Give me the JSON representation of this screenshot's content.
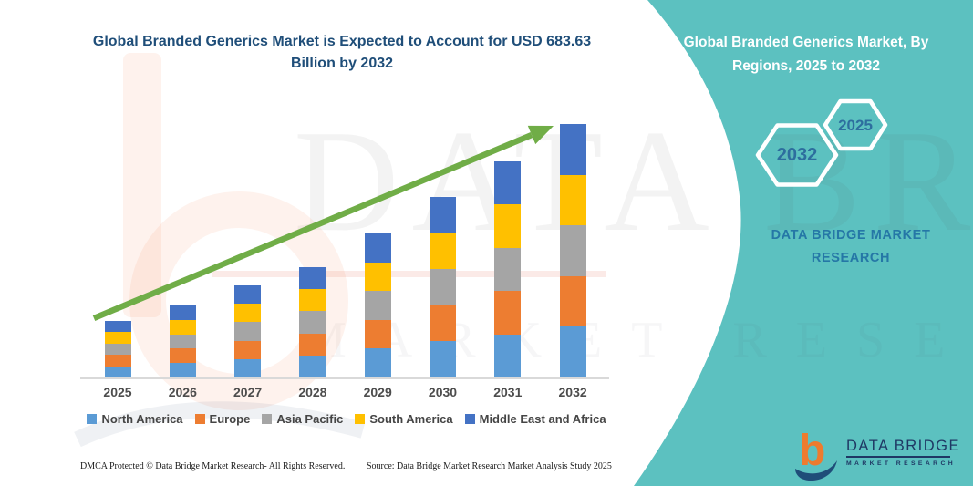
{
  "left": {
    "title": "Global Branded Generics Market is Expected to Account for USD 683.63 Billion by 2032",
    "footer_left": "DMCA Protected © Data Bridge Market Research-  All Rights Reserved.",
    "footer_source": "Source: Data Bridge Market Research  Market Analysis Study 2025"
  },
  "panel": {
    "title": "Global Branded Generics Market, By Regions, 2025 to 2032",
    "hexagons": [
      {
        "label": "2032"
      },
      {
        "label": "2025"
      }
    ],
    "brand_text": "DATA BRIDGE MARKET RESEARCH",
    "logo": {
      "name": "DATA BRIDGE",
      "sub": "MARKET RESEARCH"
    },
    "bg_color": "#5CC1C0",
    "text_color": "#2577A6"
  },
  "watermarks": {
    "big_text": "DATA BRIDGE",
    "sub_text": "MARKET RESEARCH"
  },
  "chart_data": {
    "type": "bar",
    "stacked": true,
    "title": "Global Branded Generics Market is Expected to Account for USD 683.63 Billion by 2032",
    "unit": "USD Billion",
    "categories": [
      "2025",
      "2026",
      "2027",
      "2028",
      "2029",
      "2030",
      "2031",
      "2032"
    ],
    "totals_usd_billion": [
      152.5,
      194.3,
      248.4,
      297.6,
      388.5,
      486.9,
      582.8,
      683.63
    ],
    "series": [
      {
        "name": "North America",
        "color": "#5B9BD5",
        "values": [
          30.5,
          38.9,
          49.7,
          59.5,
          77.7,
          97.4,
          116.6,
          136.7
        ]
      },
      {
        "name": "Europe",
        "color": "#ED7D31",
        "values": [
          30.5,
          38.9,
          49.7,
          59.5,
          77.7,
          97.4,
          116.6,
          136.7
        ]
      },
      {
        "name": "Asia Pacific",
        "color": "#A5A5A5",
        "values": [
          30.5,
          38.9,
          49.7,
          59.5,
          77.7,
          97.4,
          116.6,
          136.7
        ]
      },
      {
        "name": "South America",
        "color": "#FFC000",
        "values": [
          30.5,
          38.9,
          49.7,
          59.5,
          77.7,
          97.4,
          116.6,
          136.7
        ]
      },
      {
        "name": "Middle East and Africa",
        "color": "#4472C4",
        "values": [
          30.5,
          38.9,
          49.7,
          59.5,
          77.7,
          97.4,
          116.6,
          136.7
        ]
      }
    ],
    "xlabel": "",
    "ylabel": "",
    "y_axis_labels": false,
    "gridlines": false,
    "legend_position": "bottom",
    "trend_arrow": {
      "present": true,
      "color": "#70AD47",
      "direction": "up-right"
    }
  }
}
